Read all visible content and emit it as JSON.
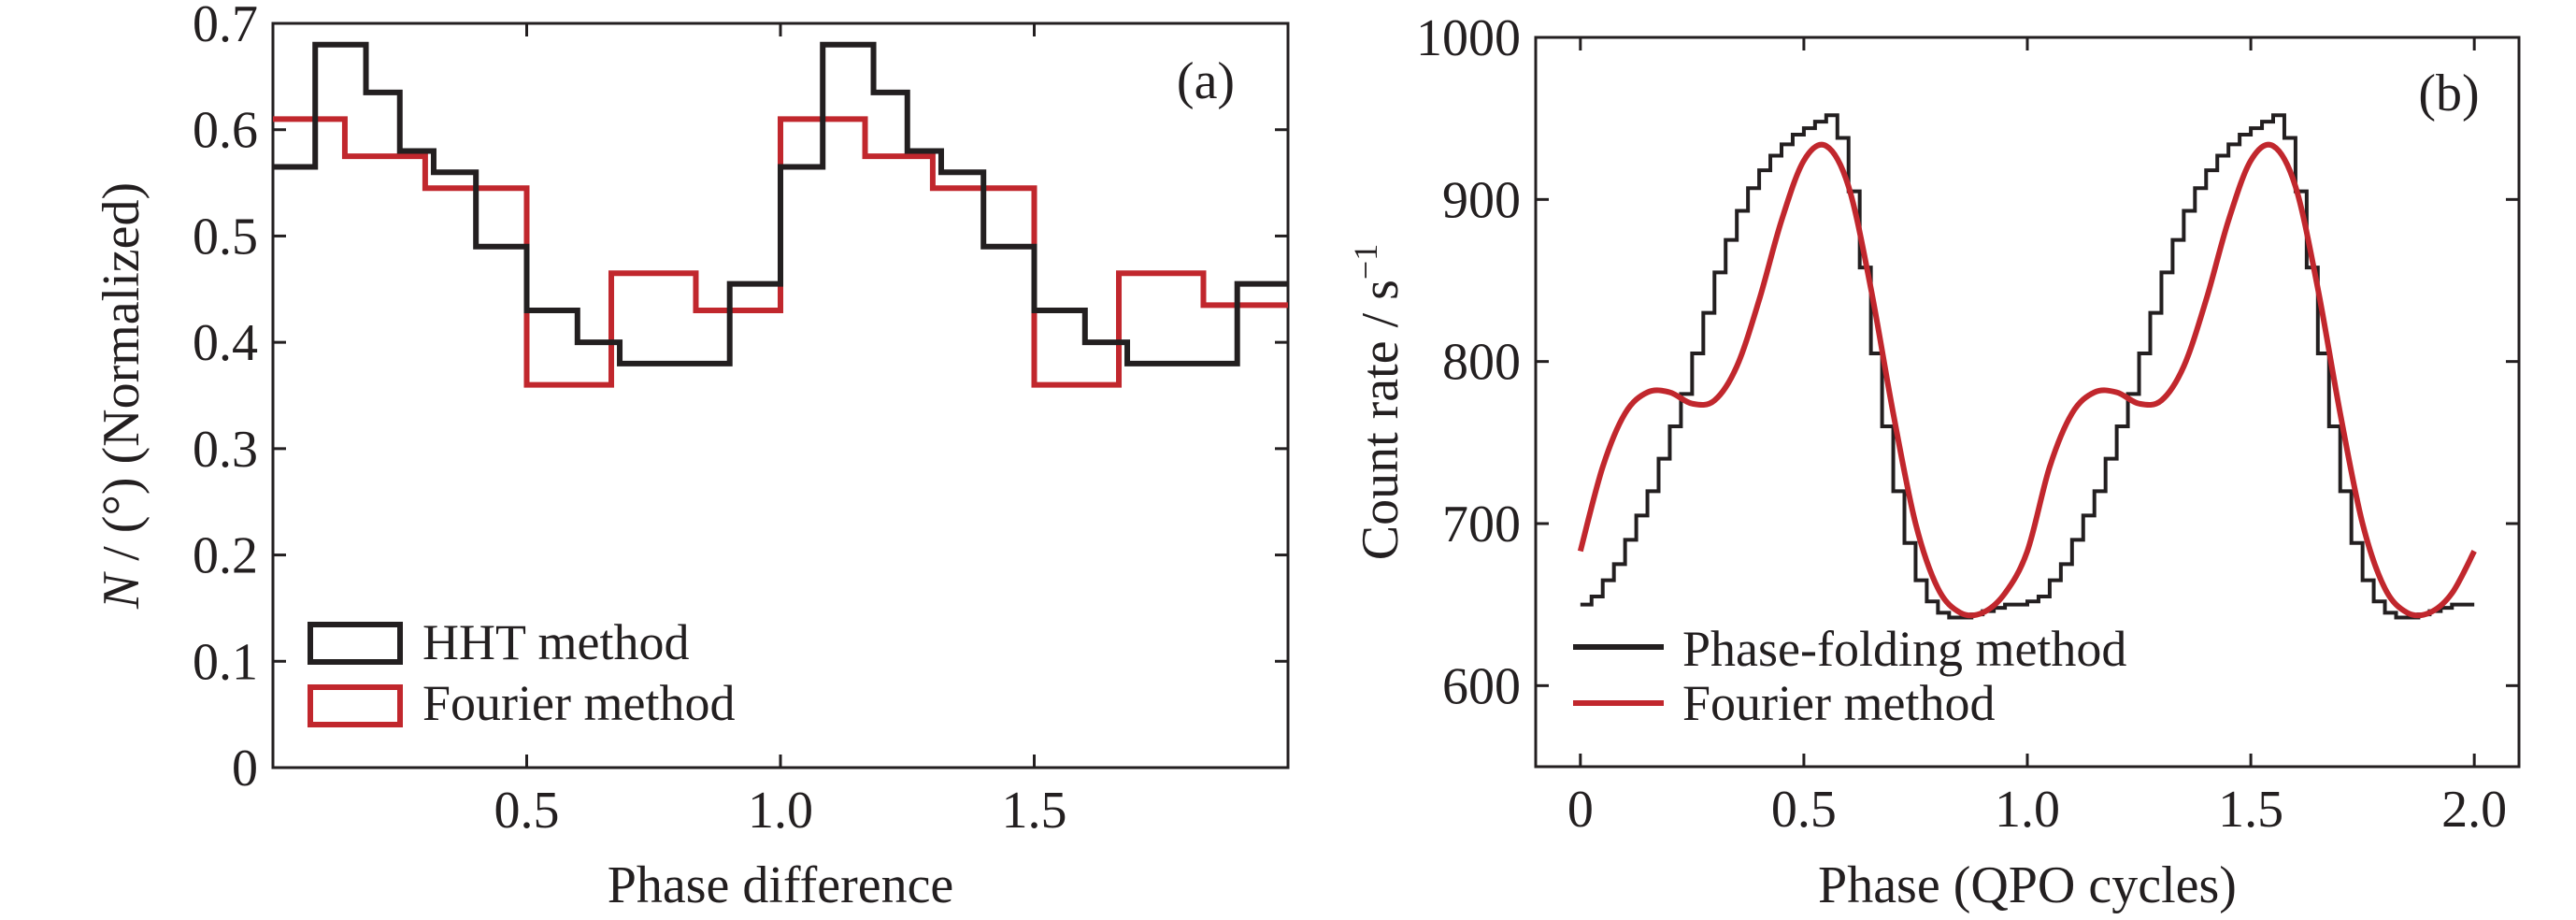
{
  "colors": {
    "black": "#231f20",
    "red": "#c1272d"
  },
  "chart_data": [
    {
      "type": "line",
      "style": "step histogram",
      "panel_label": "(a)",
      "xlabel": "Phase difference",
      "ylabel_italic": "N",
      "ylabel_rest": " / (°) (Normalized)",
      "xlim": [
        0.0,
        2.0
      ],
      "ylim": [
        0,
        0.7
      ],
      "xticks": [
        0.5,
        1.0,
        1.5
      ],
      "xtick_labels": [
        "0.5",
        "1.0",
        "1.5"
      ],
      "yticks": [
        0,
        0.1,
        0.2,
        0.3,
        0.4,
        0.5,
        0.6,
        0.7
      ],
      "ytick_labels": [
        "0",
        "0.1",
        "0.2",
        "0.3",
        "0.4",
        "0.5",
        "0.6",
        "0.7"
      ],
      "legend_position": "bottom-left",
      "series": [
        {
          "name": "HHT method",
          "color": "#231f20",
          "bin_edges": [
            0.0,
            0.0833,
            0.1833,
            0.25,
            0.3167,
            0.4,
            0.5,
            0.6,
            0.6833,
            0.75,
            0.9,
            1.0,
            1.0833,
            1.1833,
            1.25,
            1.3167,
            1.4,
            1.5,
            1.6,
            1.6833,
            1.75,
            1.9,
            2.0
          ],
          "values": [
            0.565,
            0.68,
            0.635,
            0.58,
            0.56,
            0.49,
            0.43,
            0.4,
            0.38,
            0.38,
            0.455,
            0.565,
            0.68,
            0.635,
            0.58,
            0.56,
            0.49,
            0.43,
            0.4,
            0.38,
            0.38,
            0.455
          ]
        },
        {
          "name": "Fourier method",
          "color": "#c1272d",
          "bin_edges": [
            0.0,
            0.1417,
            0.3,
            0.5,
            0.6667,
            0.8333,
            1.0,
            1.1667,
            1.3,
            1.5,
            1.6667,
            1.8333,
            2.0
          ],
          "values": [
            0.61,
            0.575,
            0.545,
            0.36,
            0.465,
            0.43,
            0.61,
            0.575,
            0.545,
            0.36,
            0.465,
            0.435
          ]
        }
      ]
    },
    {
      "type": "line",
      "panel_label": "(b)",
      "xlabel": "Phase (QPO cycles)",
      "ylabel": "Count rate / s",
      "ylabel_sup": "−1",
      "xlim": [
        -0.1,
        2.1
      ],
      "ylim": [
        550,
        1000
      ],
      "xticks": [
        0.0,
        0.5,
        1.0,
        1.5,
        2.0
      ],
      "xtick_labels": [
        "0",
        "0.5",
        "1.0",
        "1.5",
        "2.0"
      ],
      "yticks": [
        600,
        700,
        800,
        900,
        1000
      ],
      "ytick_labels": [
        "600",
        "700",
        "800",
        "900",
        "1000"
      ],
      "legend_position": "bottom-left",
      "series": [
        {
          "name": "Phase-folding method",
          "color": "#231f20",
          "style": "step",
          "bin_width": 0.025,
          "x_start": 0.0,
          "values": [
            650,
            655,
            665,
            675,
            690,
            705,
            720,
            740,
            760,
            780,
            805,
            830,
            855,
            875,
            893,
            907,
            918,
            927,
            934,
            940,
            944,
            948,
            952,
            938,
            905,
            858,
            805,
            760,
            720,
            688,
            665,
            652,
            645,
            642,
            642,
            644,
            646,
            648,
            650,
            650,
            652,
            655,
            665,
            675,
            690,
            705,
            720,
            740,
            760,
            780,
            805,
            830,
            855,
            875,
            893,
            907,
            918,
            927,
            934,
            940,
            944,
            948,
            952,
            938,
            905,
            858,
            805,
            760,
            720,
            688,
            665,
            652,
            645,
            642,
            642,
            644,
            646,
            648,
            650,
            650
          ]
        },
        {
          "name": "Fourier method",
          "color": "#c1272d",
          "style": "smooth",
          "x": [
            0.0,
            0.05,
            0.1,
            0.15,
            0.2,
            0.25,
            0.3,
            0.35,
            0.4,
            0.45,
            0.5,
            0.55,
            0.6,
            0.65,
            0.7,
            0.75,
            0.8,
            0.85,
            0.9,
            0.95,
            1.0,
            1.05,
            1.1,
            1.15,
            1.2,
            1.25,
            1.3,
            1.35,
            1.4,
            1.45,
            1.5,
            1.55,
            1.6,
            1.65,
            1.7,
            1.75,
            1.8,
            1.85,
            1.9,
            1.95,
            2.0
          ],
          "y": [
            683,
            735,
            768,
            781,
            781,
            774,
            776,
            797,
            838,
            887,
            924,
            933,
            908,
            845,
            768,
            700,
            660,
            645,
            645,
            657,
            683,
            735,
            768,
            781,
            781,
            774,
            776,
            797,
            838,
            887,
            924,
            933,
            908,
            845,
            768,
            700,
            660,
            645,
            645,
            657,
            683
          ]
        }
      ]
    }
  ]
}
